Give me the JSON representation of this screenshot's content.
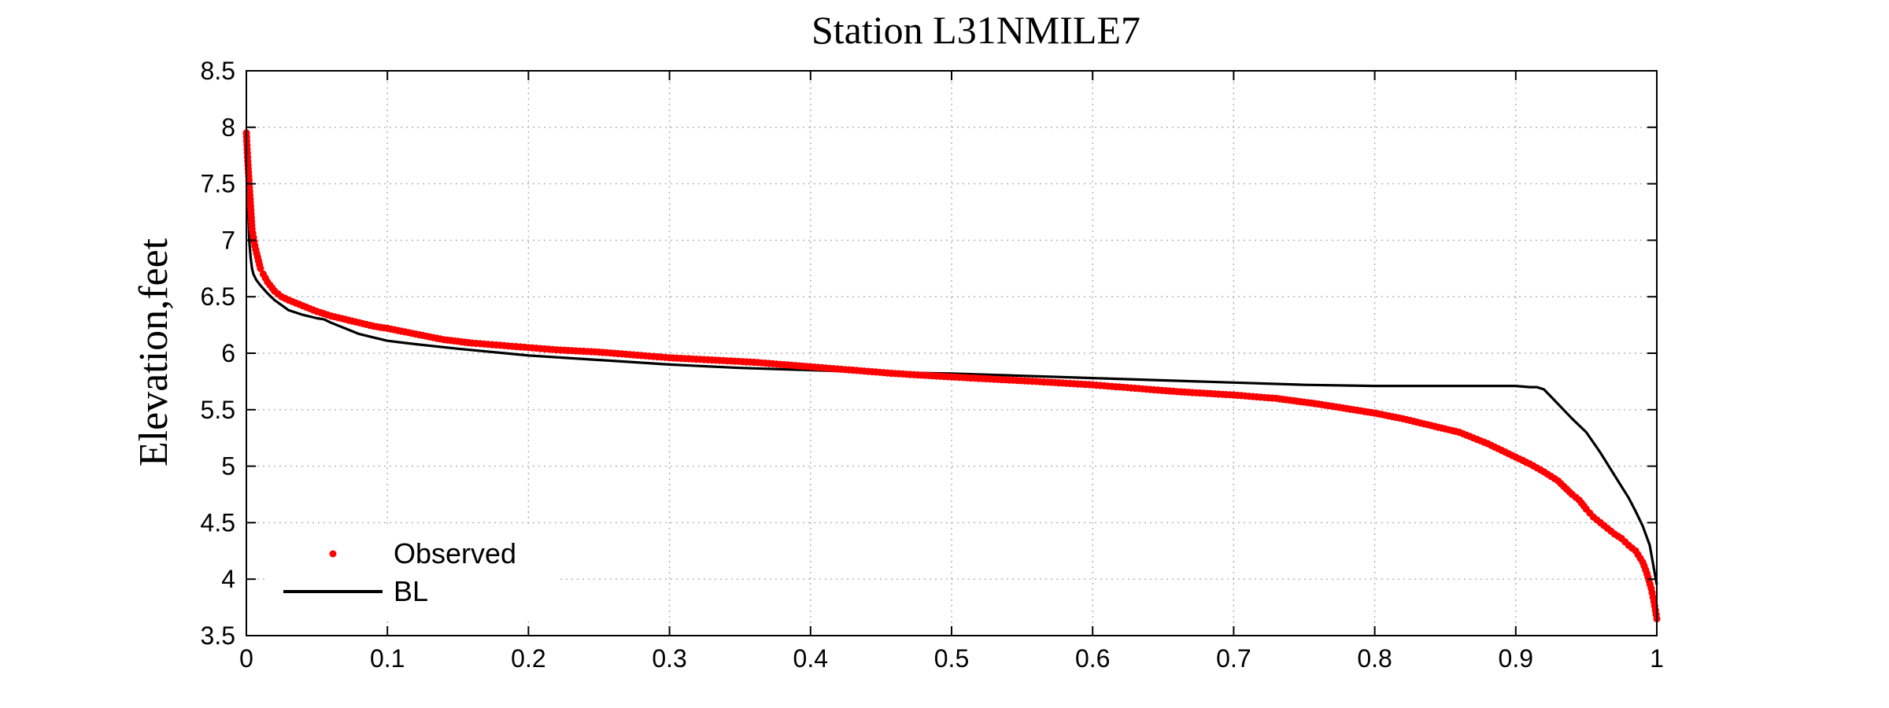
{
  "chart_data": {
    "type": "line",
    "title": "Station L31NMILE7",
    "xlabel": "",
    "ylabel": "Elevation,feet",
    "xlim": [
      0,
      1
    ],
    "ylim": [
      3.5,
      8.5
    ],
    "x_ticks": [
      0,
      0.1,
      0.2,
      0.3,
      0.4,
      0.5,
      0.6,
      0.7,
      0.8,
      0.9,
      1
    ],
    "x_tick_labels": [
      "0",
      "0.1",
      "0.2",
      "0.3",
      "0.4",
      "0.5",
      "0.6",
      "0.7",
      "0.8",
      "0.9",
      "1"
    ],
    "y_ticks": [
      3.5,
      4,
      4.5,
      5,
      5.5,
      6,
      6.5,
      7,
      7.5,
      8,
      8.5
    ],
    "y_tick_labels": [
      "3.5",
      "4",
      "4.5",
      "5",
      "5.5",
      "6",
      "6.5",
      "7",
      "7.5",
      "8",
      "8.5"
    ],
    "grid": true,
    "legend_position": "bottom-left",
    "colors": {
      "observed": "#ff0000",
      "bl": "#000000"
    },
    "series": [
      {
        "name": "Observed",
        "style": "markers",
        "x": [
          0,
          0.001,
          0.002,
          0.003,
          0.004,
          0.006,
          0.008,
          0.01,
          0.012,
          0.015,
          0.02,
          0.025,
          0.03,
          0.04,
          0.05,
          0.06,
          0.07,
          0.08,
          0.09,
          0.1,
          0.12,
          0.14,
          0.16,
          0.18,
          0.2,
          0.22,
          0.25,
          0.28,
          0.3,
          0.33,
          0.36,
          0.4,
          0.43,
          0.46,
          0.5,
          0.53,
          0.56,
          0.6,
          0.63,
          0.66,
          0.7,
          0.73,
          0.76,
          0.8,
          0.82,
          0.84,
          0.86,
          0.88,
          0.9,
          0.91,
          0.92,
          0.93,
          0.94,
          0.945,
          0.95,
          0.955,
          0.96,
          0.965,
          0.97,
          0.975,
          0.98,
          0.985,
          0.99,
          0.993,
          0.996,
          0.998,
          1.0
        ],
        "y": [
          7.95,
          7.7,
          7.5,
          7.3,
          7.1,
          6.95,
          6.85,
          6.75,
          6.7,
          6.63,
          6.55,
          6.5,
          6.47,
          6.42,
          6.37,
          6.33,
          6.3,
          6.27,
          6.24,
          6.22,
          6.17,
          6.12,
          6.09,
          6.07,
          6.05,
          6.03,
          6.01,
          5.98,
          5.96,
          5.94,
          5.92,
          5.88,
          5.85,
          5.82,
          5.79,
          5.77,
          5.75,
          5.72,
          5.69,
          5.66,
          5.63,
          5.6,
          5.55,
          5.47,
          5.42,
          5.36,
          5.3,
          5.2,
          5.08,
          5.02,
          4.95,
          4.87,
          4.75,
          4.7,
          4.62,
          4.55,
          4.5,
          4.45,
          4.4,
          4.36,
          4.3,
          4.25,
          4.15,
          4.05,
          3.92,
          3.8,
          3.65
        ]
      },
      {
        "name": "BL",
        "style": "line",
        "x": [
          0,
          0.001,
          0.002,
          0.003,
          0.004,
          0.005,
          0.007,
          0.01,
          0.015,
          0.02,
          0.03,
          0.04,
          0.05,
          0.055,
          0.06,
          0.07,
          0.08,
          0.09,
          0.1,
          0.12,
          0.15,
          0.2,
          0.25,
          0.3,
          0.35,
          0.4,
          0.45,
          0.5,
          0.55,
          0.6,
          0.65,
          0.7,
          0.75,
          0.8,
          0.85,
          0.9,
          0.91,
          0.915,
          0.92,
          0.93,
          0.94,
          0.95,
          0.96,
          0.97,
          0.98,
          0.985,
          0.99,
          0.995,
          1.0
        ],
        "y": [
          7.95,
          7.4,
          7.0,
          6.85,
          6.75,
          6.7,
          6.65,
          6.6,
          6.53,
          6.47,
          6.38,
          6.34,
          6.31,
          6.3,
          6.27,
          6.22,
          6.17,
          6.14,
          6.11,
          6.08,
          6.04,
          5.98,
          5.94,
          5.9,
          5.87,
          5.85,
          5.83,
          5.82,
          5.8,
          5.78,
          5.76,
          5.74,
          5.72,
          5.71,
          5.71,
          5.71,
          5.7,
          5.7,
          5.68,
          5.55,
          5.42,
          5.3,
          5.12,
          4.92,
          4.72,
          4.6,
          4.47,
          4.3,
          3.95
        ]
      }
    ]
  }
}
